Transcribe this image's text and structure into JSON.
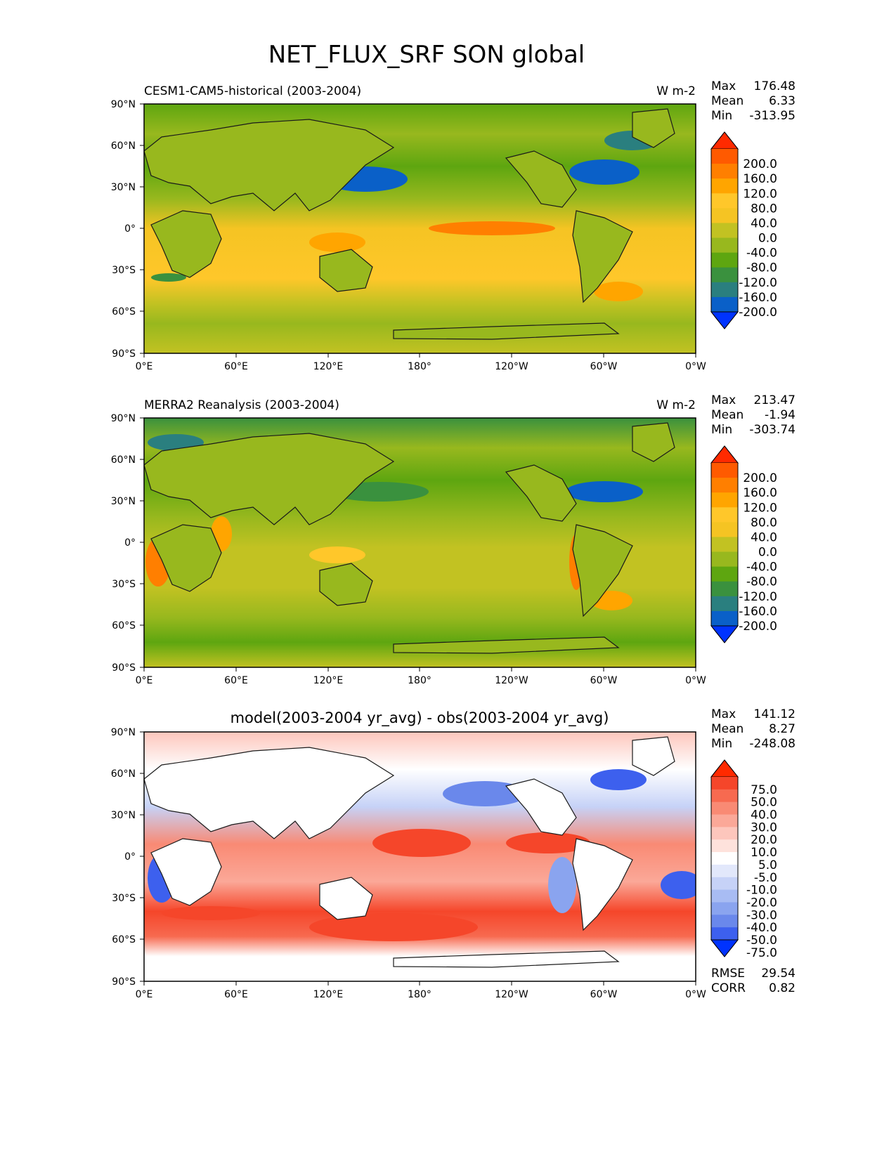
{
  "figure": {
    "title": "NET_FLUX_SRF SON global"
  },
  "chart_data": [
    {
      "type": "heatmap",
      "title": "CESM1-CAM5-historical (2003-2004)",
      "units": "W m-2",
      "stats": {
        "max_label": "Max",
        "max": "176.48",
        "mean_label": "Mean",
        "mean": "6.33",
        "min_label": "Min",
        "min": "-313.95"
      },
      "x_ticks": [
        "0°E",
        "60°E",
        "120°E",
        "180°",
        "120°W",
        "60°W",
        "0°W"
      ],
      "y_ticks": [
        "90°N",
        "60°N",
        "30°N",
        "0°",
        "30°S",
        "60°S",
        "90°S"
      ],
      "xlim": [
        0,
        360
      ],
      "ylim": [
        -90,
        90
      ],
      "colorbar": {
        "tick_labels": [
          "200.0",
          "160.0",
          "120.0",
          "80.0",
          "40.0",
          "0.0",
          "-40.0",
          "-80.0",
          "-120.0",
          "-160.0",
          "-200.0"
        ],
        "colors": [
          "#ff2a00",
          "#ff5a00",
          "#ff7f00",
          "#ffa500",
          "#ffc72a",
          "#f5c423",
          "#c2c222",
          "#98b81e",
          "#5ea610",
          "#3a913e",
          "#2a7f7f",
          "#0a60c8",
          "#0033ff"
        ]
      }
    },
    {
      "type": "heatmap",
      "title": "MERRA2 Reanalysis (2003-2004)",
      "units": "W m-2",
      "stats": {
        "max_label": "Max",
        "max": "213.47",
        "mean_label": "Mean",
        "mean": "-1.94",
        "min_label": "Min",
        "min": "-303.74"
      },
      "x_ticks": [
        "0°E",
        "60°E",
        "120°E",
        "180°",
        "120°W",
        "60°W",
        "0°W"
      ],
      "y_ticks": [
        "90°N",
        "60°N",
        "30°N",
        "0°",
        "30°S",
        "60°S",
        "90°S"
      ],
      "xlim": [
        0,
        360
      ],
      "ylim": [
        -90,
        90
      ],
      "colorbar": {
        "tick_labels": [
          "200.0",
          "160.0",
          "120.0",
          "80.0",
          "40.0",
          "0.0",
          "-40.0",
          "-80.0",
          "-120.0",
          "-160.0",
          "-200.0"
        ],
        "colors": [
          "#ff2a00",
          "#ff5a00",
          "#ff7f00",
          "#ffa500",
          "#ffc72a",
          "#f5c423",
          "#c2c222",
          "#98b81e",
          "#5ea610",
          "#3a913e",
          "#2a7f7f",
          "#0a60c8",
          "#0033ff"
        ]
      }
    },
    {
      "type": "heatmap",
      "title": "model(2003-2004 yr_avg) - obs(2003-2004 yr_avg)",
      "units": "",
      "stats": {
        "max_label": "Max",
        "max": "141.12",
        "mean_label": "Mean",
        "mean": "8.27",
        "min_label": "Min",
        "min": "-248.08"
      },
      "metrics": {
        "rmse_label": "RMSE",
        "rmse": "29.54",
        "corr_label": "CORR",
        "corr": "0.82"
      },
      "x_ticks": [
        "0°E",
        "60°E",
        "120°E",
        "180°",
        "120°W",
        "60°W",
        "0°W"
      ],
      "y_ticks": [
        "90°N",
        "60°N",
        "30°N",
        "0°",
        "30°S",
        "60°S",
        "90°S"
      ],
      "xlim": [
        0,
        360
      ],
      "ylim": [
        -90,
        90
      ],
      "colorbar": {
        "tick_labels": [
          "75.0",
          "50.0",
          "40.0",
          "30.0",
          "20.0",
          "10.0",
          "5.0",
          "-5.0",
          "-10.0",
          "-20.0",
          "-30.0",
          "-40.0",
          "-50.0",
          "-75.0"
        ],
        "colors": [
          "#ff2a00",
          "#f5462a",
          "#f76a50",
          "#f98a74",
          "#fba898",
          "#fdc6bc",
          "#fee2dc",
          "#ffffff",
          "#e2e8fb",
          "#c6d2f7",
          "#a8bcf3",
          "#8aa4ef",
          "#6a88eb",
          "#3d60ee",
          "#0033ff"
        ]
      }
    }
  ]
}
